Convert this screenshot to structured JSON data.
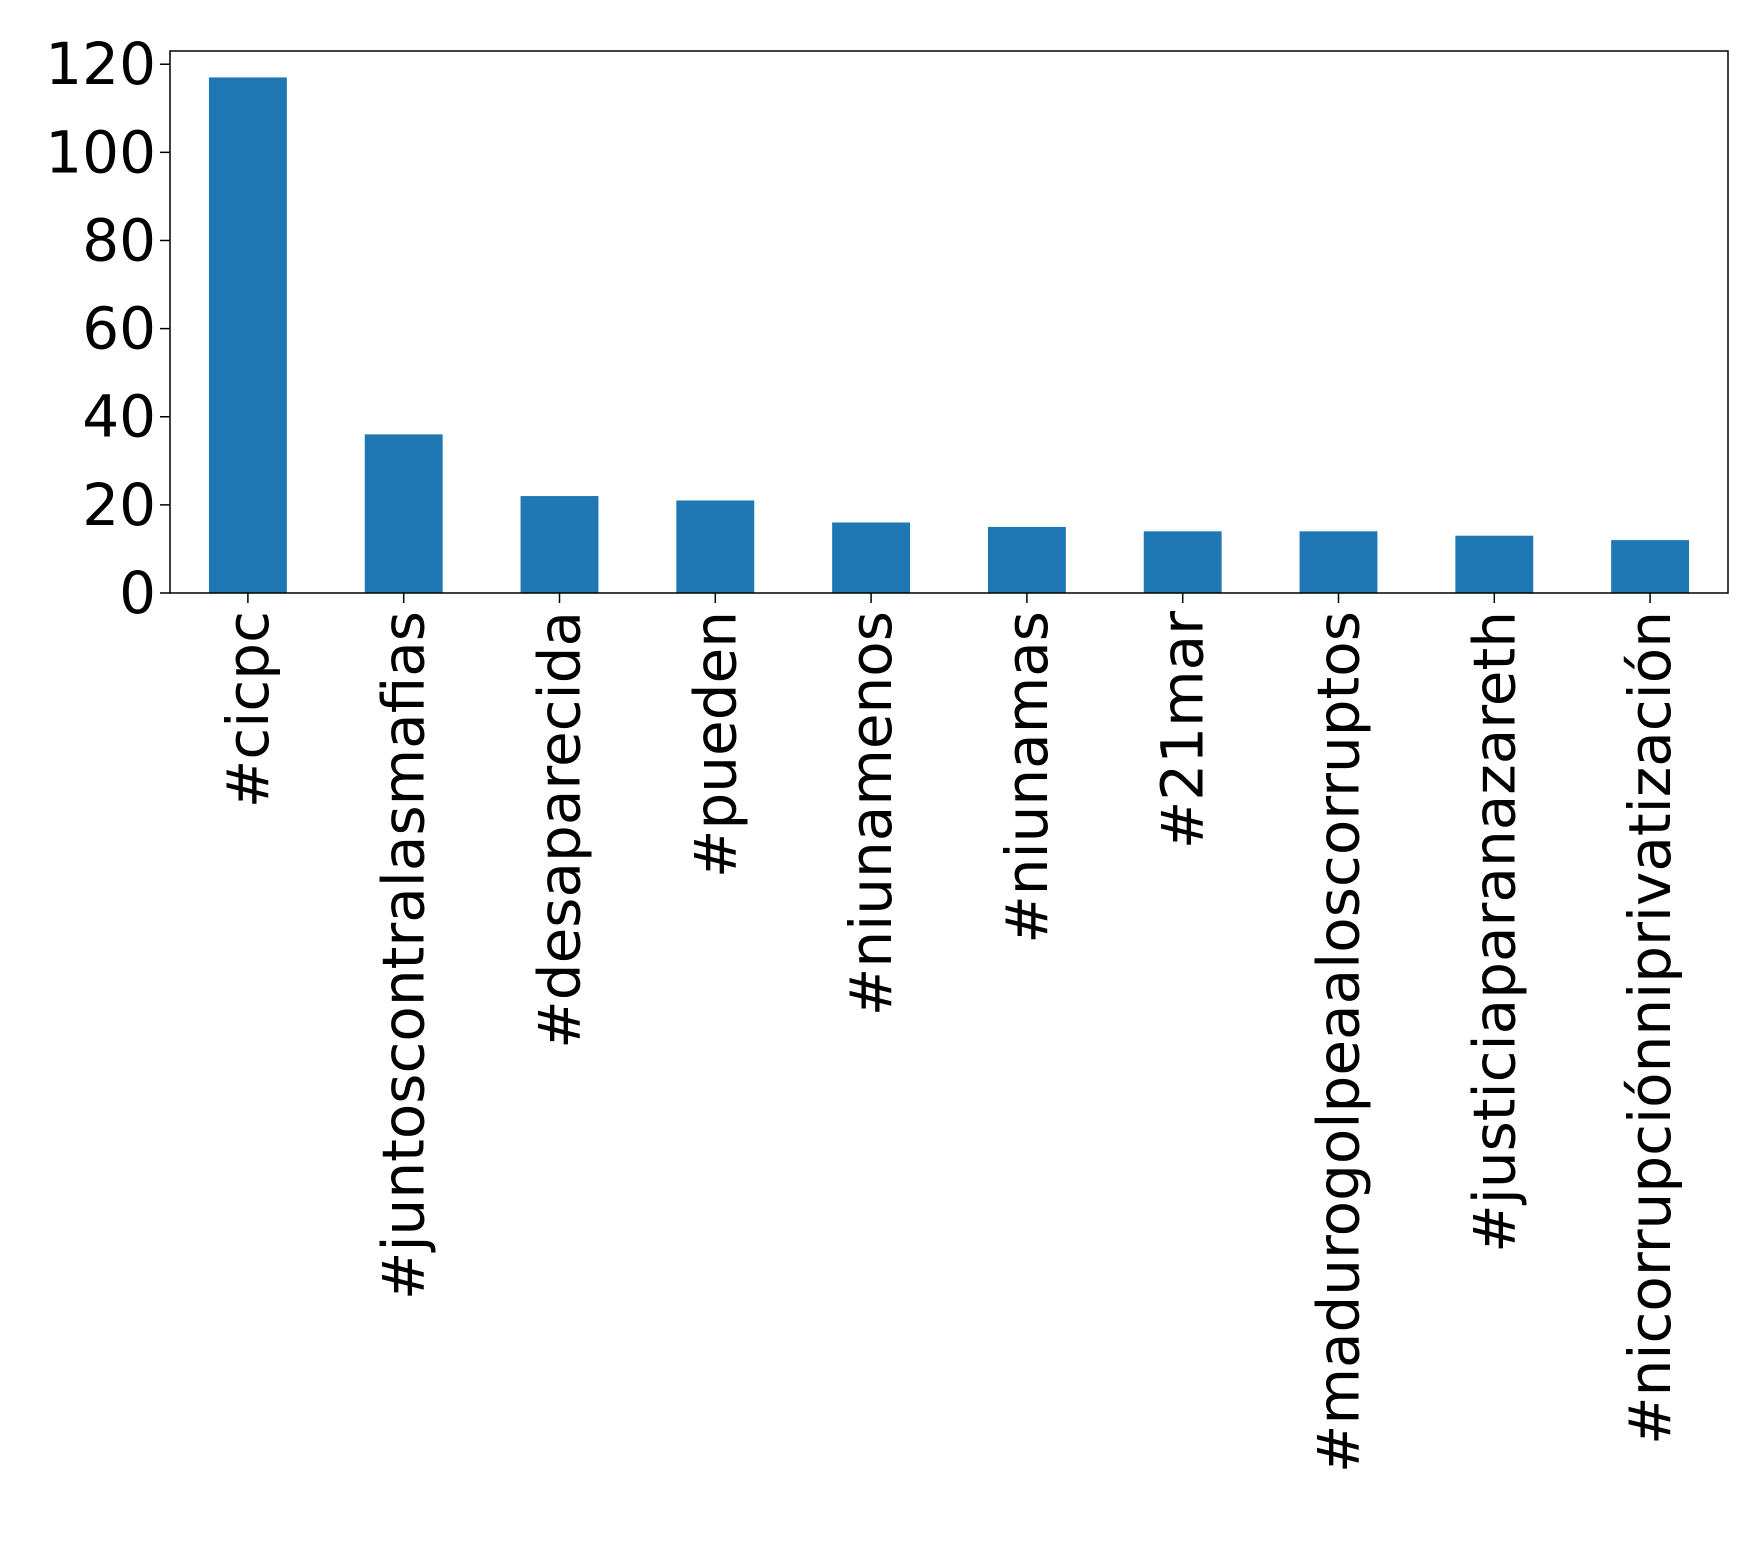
{
  "chart_data": {
    "type": "bar",
    "title": "",
    "xlabel": "",
    "ylabel": "",
    "categories": [
      "#cicpc",
      "#juntoscontralasmafias",
      "#desaparecida",
      "#pueden",
      "#niunamenos",
      "#niunamas",
      "#21mar",
      "#madurogolpeaaloscorruptos",
      "#justiciaparanazareth",
      "#nicorrupciónniprivatización"
    ],
    "values": [
      117,
      36,
      22,
      21,
      16,
      15,
      14,
      14,
      13,
      12
    ],
    "ylim": [
      0,
      123
    ],
    "yticks": [
      0,
      20,
      40,
      60,
      80,
      100,
      120
    ],
    "grid": false,
    "legend": "none",
    "bar_color": "#1f77b4"
  }
}
